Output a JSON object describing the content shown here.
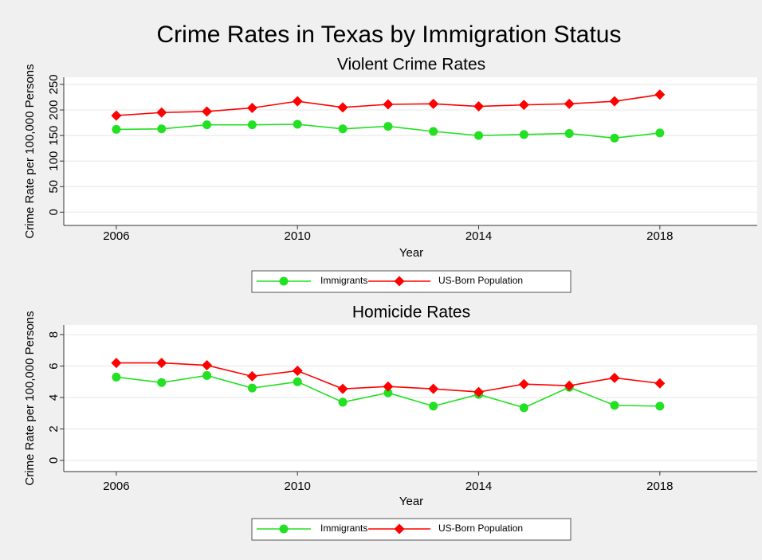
{
  "title": "Crime Rates in Texas by Immigration Status",
  "chart_data": [
    {
      "type": "line",
      "title": "Violent Crime Rates",
      "xlabel": "Year",
      "ylabel": "Crime Rate per 100,000 Persons",
      "x": [
        2006,
        2007,
        2008,
        2009,
        2010,
        2011,
        2012,
        2013,
        2014,
        2015,
        2016,
        2017,
        2018
      ],
      "series": [
        {
          "name": "Immigrants",
          "color": "#22e022",
          "marker": "circle",
          "values": [
            162,
            163,
            171,
            171,
            172,
            163,
            168,
            158,
            150,
            152,
            154,
            145,
            155
          ]
        },
        {
          "name": "US-Born Population",
          "color": "#ff0000",
          "marker": "diamond",
          "values": [
            189,
            195,
            197,
            204,
            217,
            205,
            211,
            212,
            207,
            210,
            212,
            217,
            230
          ]
        }
      ],
      "xlim": [
        2004.84,
        2020.15
      ],
      "xticks": [
        2006,
        2010,
        2014,
        2018
      ],
      "ylim": [
        -26,
        264
      ],
      "yticks": [
        0,
        50,
        100,
        150,
        200,
        250
      ],
      "grid": true,
      "legend": "bottom"
    },
    {
      "type": "line",
      "title": "Homicide Rates",
      "xlabel": "Year",
      "ylabel": "Crime Rate per 100,000 Persons",
      "x": [
        2006,
        2007,
        2008,
        2009,
        2010,
        2011,
        2012,
        2013,
        2014,
        2015,
        2016,
        2017,
        2018
      ],
      "series": [
        {
          "name": "Immigrants",
          "color": "#22e022",
          "marker": "circle",
          "values": [
            5.3,
            4.95,
            5.4,
            4.6,
            5.0,
            3.7,
            4.3,
            3.45,
            4.2,
            3.35,
            4.65,
            3.5,
            3.45
          ]
        },
        {
          "name": "US-Born Population",
          "color": "#ff0000",
          "marker": "diamond",
          "values": [
            6.2,
            6.2,
            6.05,
            5.35,
            5.7,
            4.55,
            4.7,
            4.55,
            4.35,
            4.85,
            4.75,
            5.25,
            4.9
          ]
        }
      ],
      "xlim": [
        2004.84,
        2020.15
      ],
      "xticks": [
        2006,
        2010,
        2014,
        2018
      ],
      "ylim": [
        -0.71,
        8.61
      ],
      "yticks": [
        0,
        2,
        4,
        6,
        8
      ],
      "grid": true,
      "legend": "bottom"
    }
  ]
}
